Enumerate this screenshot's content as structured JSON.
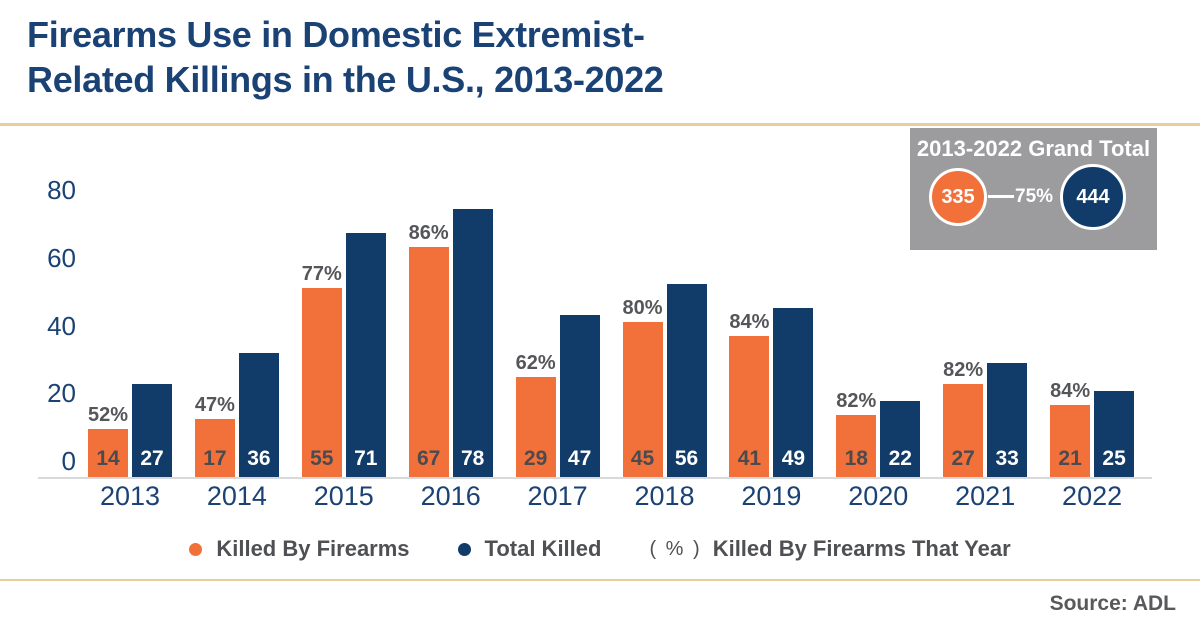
{
  "title": {
    "line1": "Firearms Use in Domestic Extremist-",
    "line2": "Related Killings in the U.S., 2013-2022"
  },
  "colors": {
    "orange": "#F2703A",
    "navy": "#113C6A",
    "text_navy": "#1B4274",
    "gray_text": "#55565A",
    "gold_line": "#E9CF97",
    "axis_line": "#D9D9D9",
    "grand_total_box": "#9C9C9E"
  },
  "grand_total": {
    "label": "2013-2022 Grand Total",
    "firearms_total": "335",
    "percent": "75%",
    "total_killed": "444"
  },
  "legend": {
    "items": [
      {
        "marker": "orange-dot",
        "label": "Killed By Firearms"
      },
      {
        "marker": "navy-dot",
        "label": "Total Killed"
      },
      {
        "marker": "( % )",
        "label": "Killed By Firearms That Year"
      }
    ]
  },
  "source": "Source: ADL",
  "chart_data": {
    "type": "bar",
    "title": "Firearms Use in Domestic Extremist-Related Killings in the U.S., 2013-2022",
    "categories": [
      "2013",
      "2014",
      "2015",
      "2016",
      "2017",
      "2018",
      "2019",
      "2020",
      "2021",
      "2022"
    ],
    "series": [
      {
        "name": "Killed By Firearms",
        "color": "#F2703A",
        "values": [
          14,
          17,
          55,
          67,
          29,
          45,
          41,
          18,
          27,
          21
        ]
      },
      {
        "name": "Total Killed",
        "color": "#113C6A",
        "values": [
          27,
          36,
          71,
          78,
          47,
          56,
          49,
          22,
          33,
          25
        ]
      }
    ],
    "percent_labels": [
      "52%",
      "47%",
      "77%",
      "86%",
      "62%",
      "80%",
      "84%",
      "82%",
      "82%",
      "84%"
    ],
    "xlabel": "",
    "ylabel": "",
    "y_ticks": [
      0,
      20,
      40,
      60,
      80
    ],
    "ylim": [
      0,
      85
    ],
    "grid": false,
    "legend_position": "bottom",
    "grand_total": {
      "killed_by_firearms": 335,
      "total_killed": 444,
      "percent": "75%"
    }
  }
}
